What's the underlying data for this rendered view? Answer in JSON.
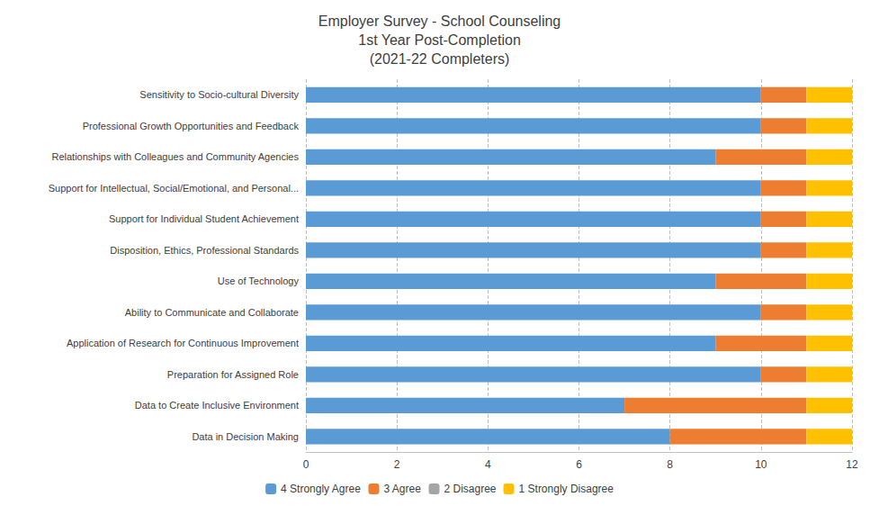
{
  "chart_data": {
    "type": "bar",
    "orientation": "horizontal",
    "stacked": true,
    "title": "Employer Survey - School Counseling\n1st Year Post-Completion\n(2021-22 Completers)",
    "categories": [
      "Data in Decision Making",
      "Data to Create Inclusive Environment",
      "Preparation for Assigned Role",
      "Application of Research for Continuous Improvement",
      "Ability to Communicate and Collaborate",
      "Use of Technology",
      "Disposition, Ethics, Professional Standards",
      "Support for Individual Student Achievement",
      "Support for Intellectual, Social/Emotional, and Personal...",
      "Relationships with Colleagues and Community Agencies",
      "Professional Growth Opportunities and Feedback",
      "Sensitivity to Socio-cultural Diversity"
    ],
    "series": [
      {
        "name": "4 Strongly Agree",
        "color": "#5B9BD5",
        "values": [
          8,
          7,
          10,
          9,
          10,
          9,
          10,
          10,
          10,
          9,
          10,
          10
        ]
      },
      {
        "name": "3 Agree",
        "color": "#ED7D31",
        "values": [
          3,
          4,
          1,
          2,
          1,
          2,
          1,
          1,
          1,
          2,
          1,
          1
        ]
      },
      {
        "name": "2 Disagree",
        "color": "#A5A5A5",
        "values": [
          0,
          0,
          0,
          0,
          0,
          0,
          0,
          0,
          0,
          0,
          0,
          0
        ]
      },
      {
        "name": "1 Strongly Disagree",
        "color": "#FFC000",
        "values": [
          1,
          1,
          1,
          1,
          1,
          1,
          1,
          1,
          1,
          1,
          1,
          1
        ]
      }
    ],
    "xlim": [
      0,
      12
    ],
    "xticks": [
      0,
      2,
      4,
      6,
      8,
      10,
      12
    ],
    "grid": true,
    "legend": "bottom"
  }
}
